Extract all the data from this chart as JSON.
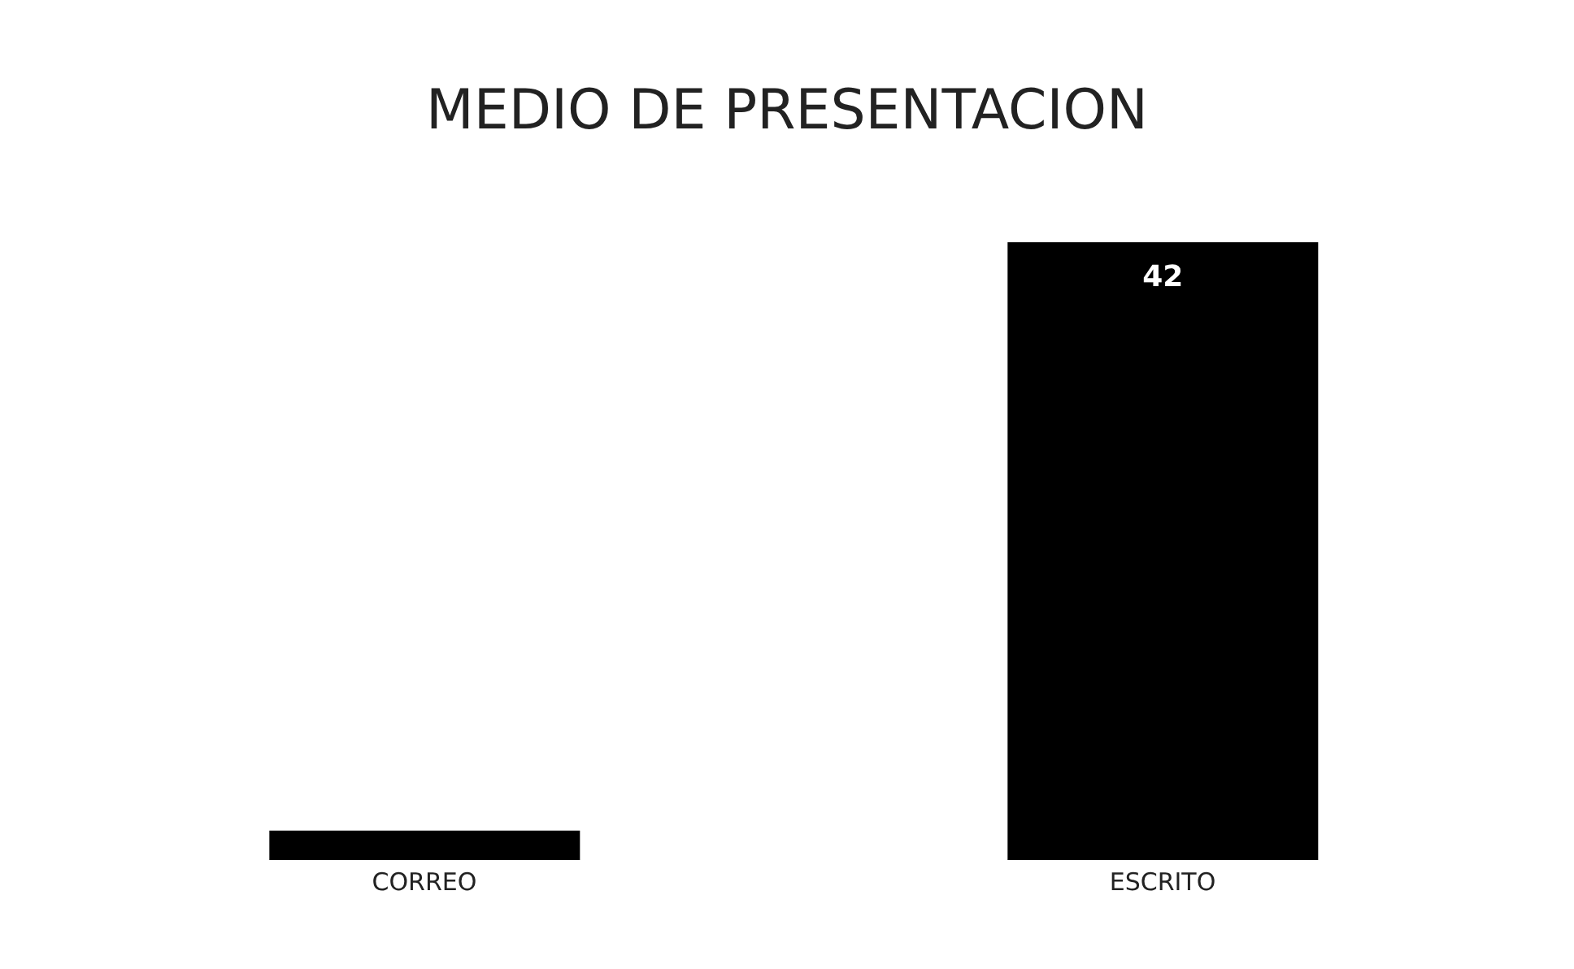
{
  "chart_data": {
    "type": "bar",
    "title": "MEDIO DE PRESENTACION",
    "categories": [
      "CORREO",
      "ESCRITO"
    ],
    "values": [
      2,
      42
    ],
    "color": "#000000",
    "value_labels": [
      null,
      "42"
    ]
  }
}
